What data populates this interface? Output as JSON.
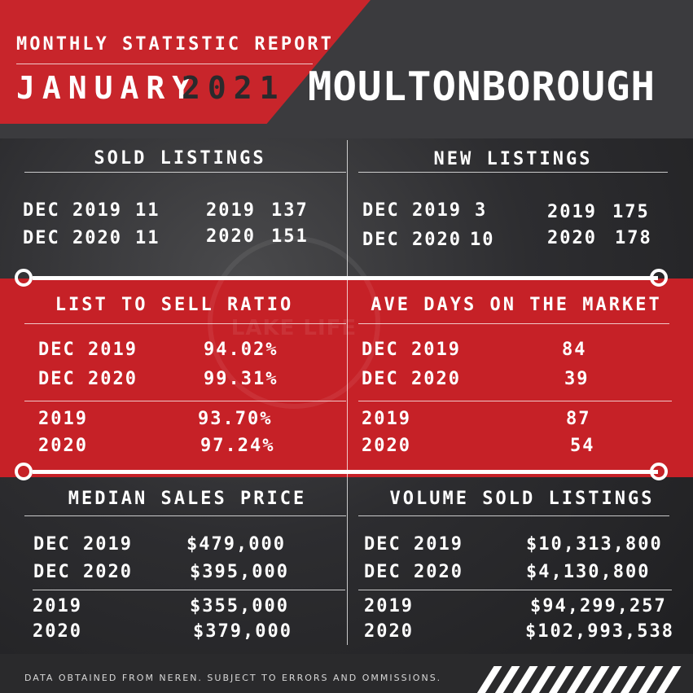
{
  "header": {
    "subtitle": "MONTHLY STATISTIC REPORT",
    "month": "JANUARY",
    "year": "2021",
    "town": "MOULTONBOROUGH"
  },
  "watermark": {
    "text": "LAKE LIFE"
  },
  "sold_listings": {
    "title": "SOLD LISTINGS",
    "monthly": [
      {
        "label": "DEC 2019",
        "value": "11"
      },
      {
        "label": "DEC 2020",
        "value": "11"
      }
    ],
    "yearly": [
      {
        "label": "2019",
        "value": "137"
      },
      {
        "label": "2020",
        "value": "151"
      }
    ]
  },
  "new_listings": {
    "title": "NEW LISTINGS",
    "monthly": [
      {
        "label": "DEC 2019",
        "value": "3"
      },
      {
        "label": "DEC 2020",
        "value": "10"
      }
    ],
    "yearly": [
      {
        "label": "2019",
        "value": "175"
      },
      {
        "label": "2020",
        "value": "178"
      }
    ]
  },
  "list_to_sell": {
    "title": "LIST TO SELL RATIO",
    "monthly": [
      {
        "label": "DEC 2019",
        "value": "94.02%"
      },
      {
        "label": "DEC 2020",
        "value": "99.31%"
      }
    ],
    "yearly": [
      {
        "label": "2019",
        "value": "93.70%"
      },
      {
        "label": "2020",
        "value": "97.24%"
      }
    ]
  },
  "ave_days": {
    "title": "AVE DAYS ON THE MARKET",
    "monthly": [
      {
        "label": "DEC 2019",
        "value": "84"
      },
      {
        "label": "DEC 2020",
        "value": "39"
      }
    ],
    "yearly": [
      {
        "label": "2019",
        "value": "87"
      },
      {
        "label": "2020",
        "value": "54"
      }
    ]
  },
  "median_price": {
    "title": "MEDIAN SALES PRICE",
    "monthly": [
      {
        "label": "DEC 2019",
        "value": "$479,000"
      },
      {
        "label": "DEC 2020",
        "value": "$395,000"
      }
    ],
    "yearly": [
      {
        "label": "2019",
        "value": "$355,000"
      },
      {
        "label": "2020",
        "value": "$379,000"
      }
    ]
  },
  "volume_sold": {
    "title": "VOLUME SOLD LISTINGS",
    "monthly": [
      {
        "label": "DEC 2019",
        "value": "$10,313,800"
      },
      {
        "label": "DEC 2020",
        "value": "$4,130,800"
      }
    ],
    "yearly": [
      {
        "label": "2019",
        "value": "$94,299,257"
      },
      {
        "label": "2020",
        "value": "$102,993,538"
      }
    ]
  },
  "footer": {
    "disclaimer": "DATA OBTAINED FROM NEREN. SUBJECT TO ERRORS AND OMMISSIONS."
  },
  "colors": {
    "accent_red": "#c62127",
    "dark": "#2d2d30",
    "text": "#ffffff"
  }
}
